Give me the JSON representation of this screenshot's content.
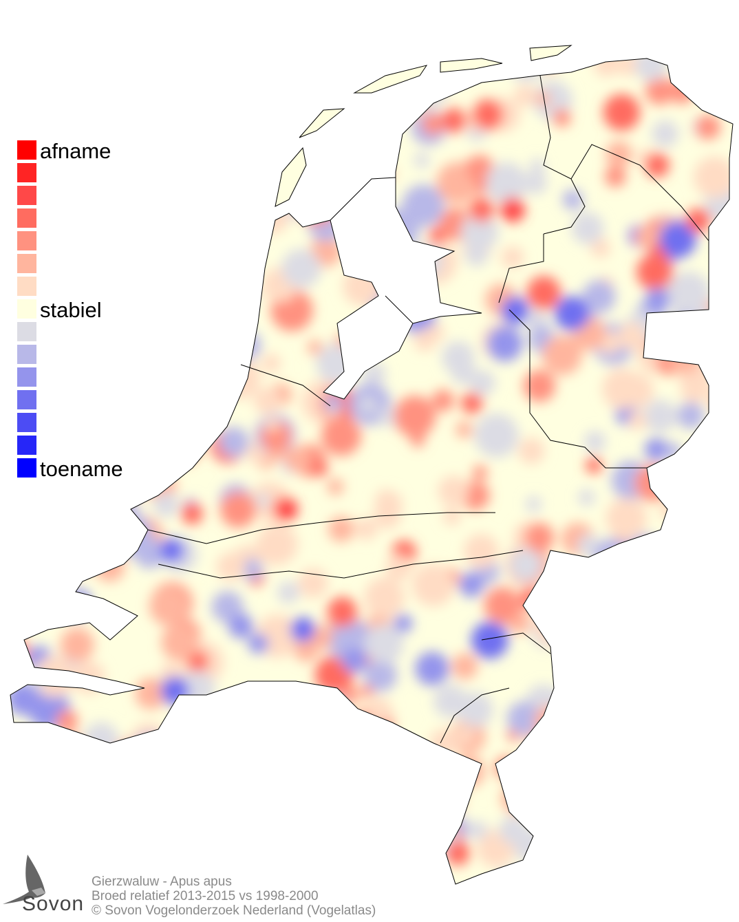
{
  "legend": {
    "top_label": "afname",
    "middle_label": "stabiel",
    "bottom_label": "toename",
    "colors": [
      "#ff0000",
      "#ff2424",
      "#ff4848",
      "#ff6c60",
      "#ff9280",
      "#ffb59e",
      "#ffdcc4",
      "#ffffe0",
      "#dcdce4",
      "#b8b8e8",
      "#9494ec",
      "#7070f0",
      "#4c4cf4",
      "#2626f8",
      "#0000ff"
    ]
  },
  "map": {
    "base_color": "#ffffe0",
    "border_color": "#000000"
  },
  "footer": {
    "species": "Gierzwaluw - Apus apus",
    "comparison": "Broed relatief 2013-2015 vs 1998-2000",
    "copyright": "© Sovon Vogelonderzoek Nederland (Vogelatlas)"
  },
  "logo": {
    "text": "Sovon",
    "icon": "swallow-icon"
  }
}
